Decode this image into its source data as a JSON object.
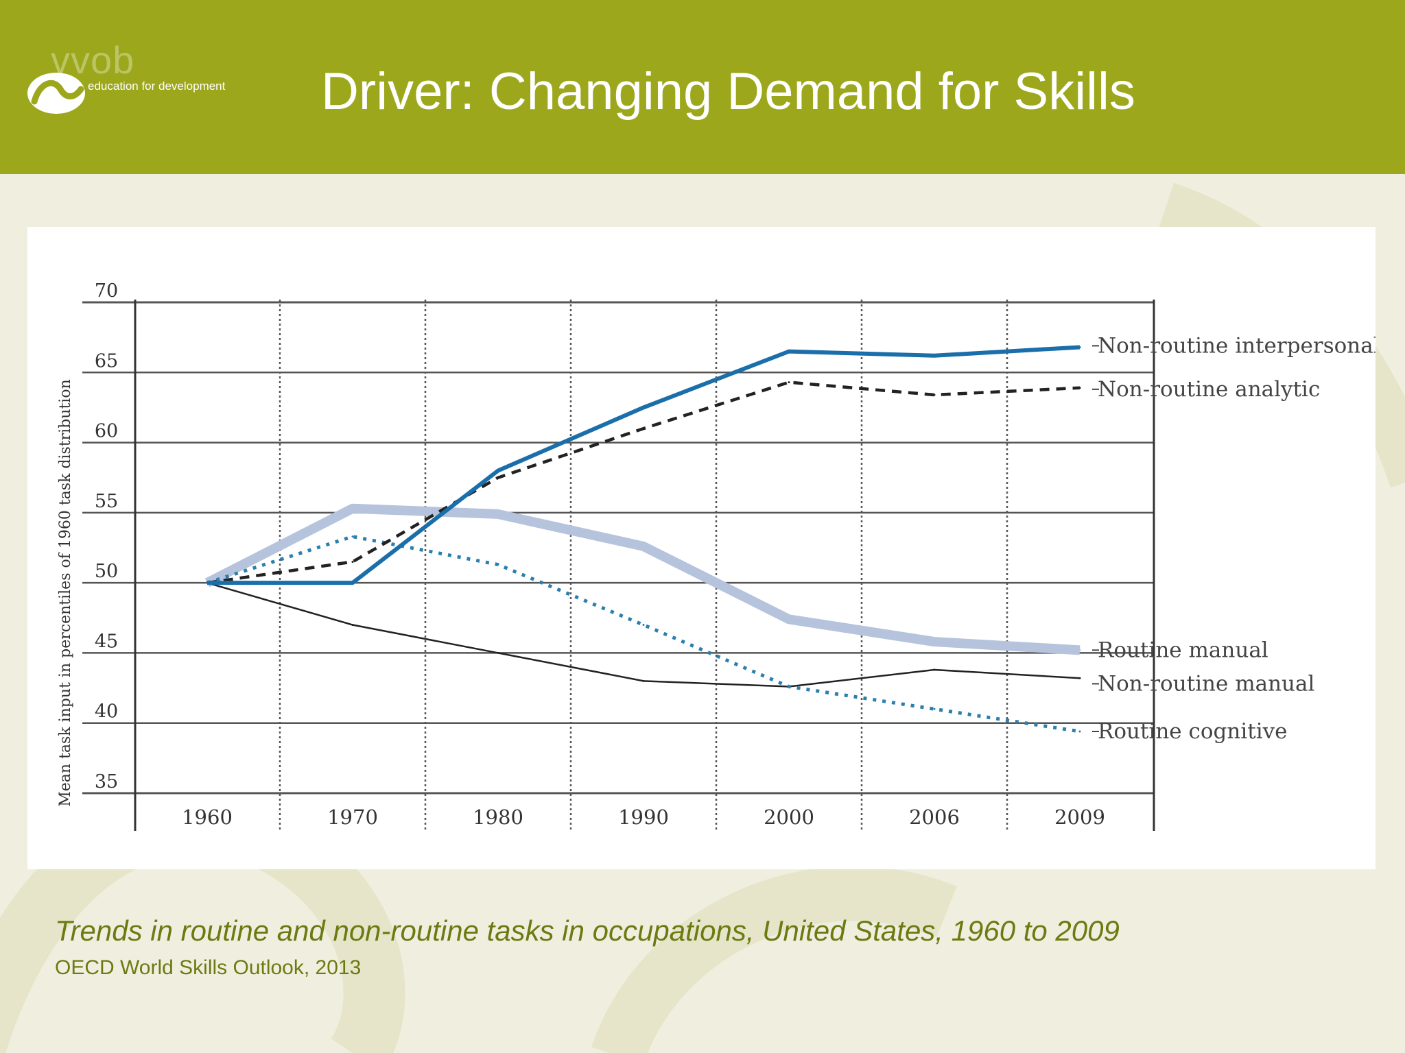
{
  "header": {
    "logo_word": "vvob",
    "logo_tagline": "education for development",
    "title": "Driver: Changing Demand for Skills"
  },
  "caption": "Trends in routine and non-routine tasks in occupations, United States, 1960 to 2009",
  "source": "OECD World Skills Outlook, 2013",
  "colors": {
    "header": "#9ca71c",
    "background": "#f0efdf",
    "caption_text": "#6c7a12",
    "nonroutine_interpersonal": "#1a6faa",
    "nonroutine_analytic": "#222222",
    "routine_manual": "#b5c3dd",
    "nonroutine_manual": "#222222",
    "routine_cognitive": "#2a7fae"
  },
  "chart_data": {
    "type": "line",
    "title": "",
    "xlabel": "",
    "ylabel": "Mean task input in percentiles of 1960 task distribution",
    "categories": [
      "1960",
      "1970",
      "1980",
      "1990",
      "2000",
      "2006",
      "2009"
    ],
    "ylim": [
      35,
      70
    ],
    "yticks": [
      35,
      40,
      45,
      50,
      55,
      60,
      65,
      70
    ],
    "grid": true,
    "legend": "right, labels at line ends",
    "series": [
      {
        "name": "Non-routine interpersonal",
        "style": "solid-thick",
        "color": "#1a6faa",
        "values": [
          50.0,
          50.0,
          58.0,
          62.5,
          66.5,
          66.2,
          66.8
        ]
      },
      {
        "name": "Non-routine analytic",
        "style": "dashed",
        "color": "#222222",
        "values": [
          50.0,
          51.5,
          57.5,
          61.0,
          64.3,
          63.4,
          63.9
        ]
      },
      {
        "name": "Routine manual",
        "style": "solid-wide-light",
        "color": "#b5c3dd",
        "values": [
          50.0,
          55.3,
          54.9,
          52.6,
          47.4,
          45.8,
          45.2
        ]
      },
      {
        "name": "Non-routine manual",
        "style": "solid-thin",
        "color": "#222222",
        "values": [
          50.0,
          47.0,
          45.0,
          43.0,
          42.6,
          43.8,
          43.2
        ]
      },
      {
        "name": "Routine cognitive",
        "style": "dotted",
        "color": "#2a7fae",
        "values": [
          50.0,
          53.3,
          51.3,
          47.0,
          42.6,
          41.0,
          39.4
        ]
      }
    ]
  }
}
